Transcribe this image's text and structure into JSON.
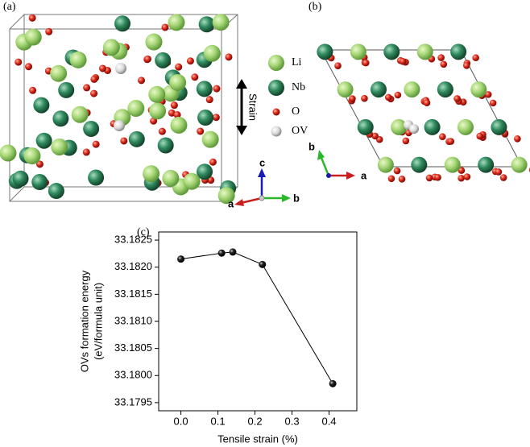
{
  "structure": {
    "panel_a": "(a)",
    "panel_b": "(b)",
    "legend": [
      "Li",
      "Nb",
      "O",
      "OV"
    ],
    "strain": "Strain",
    "axes_a": [
      "a",
      "b",
      "c"
    ],
    "axes_b": [
      "a",
      "b"
    ]
  },
  "chart_data": {
    "type": "line",
    "panel": "(c)",
    "xlabel": "Tensile strain (%)",
    "ylabel": [
      "OVs formation energy",
      "(eV/formula unit)"
    ],
    "x": [
      0,
      0.11,
      0.14,
      0.22,
      0.41
    ],
    "values": [
      33.18215,
      33.18226,
      33.18228,
      33.18205,
      33.17985
    ],
    "color": "#000000",
    "xlim": [
      -0.06,
      0.475
    ],
    "ylim": [
      33.17935,
      33.18265
    ],
    "xticks": [
      {
        "value": 0,
        "label": "0.0"
      },
      0.1,
      0.2,
      0.3,
      0.4
    ],
    "yticks": [
      33.1795,
      {
        "value": 33.18,
        "label": "33.1800"
      },
      33.1805,
      {
        "value": 33.181,
        "label": "33.1810"
      },
      33.1815,
      {
        "value": 33.182,
        "label": "33.1820"
      },
      33.1825
    ]
  }
}
